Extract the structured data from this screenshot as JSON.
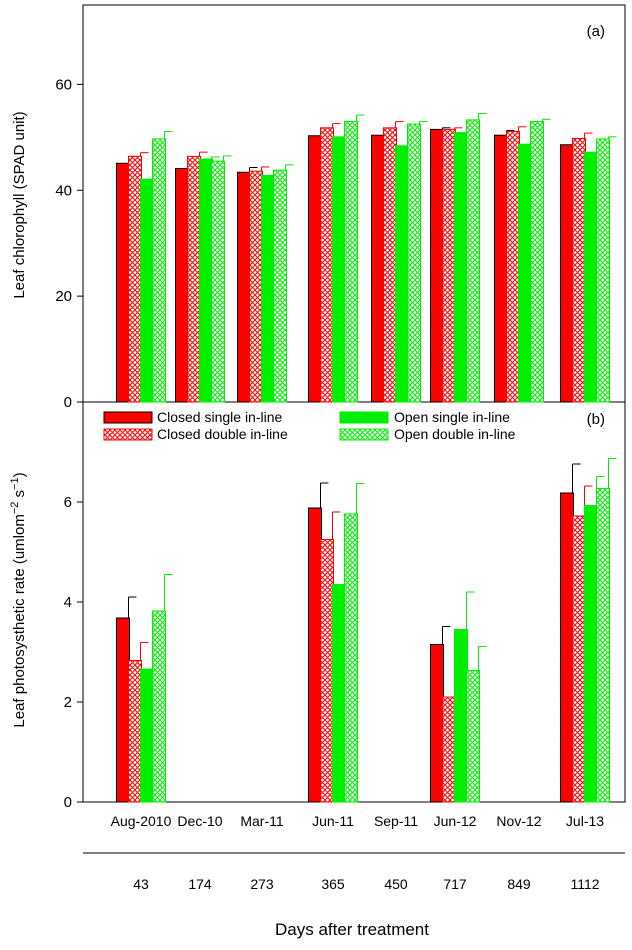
{
  "chart_data": [
    {
      "type": "bar",
      "panel_label": "(a)",
      "ylabel": "Leaf chlorophyll (SPAD unit)",
      "ylim": [
        0,
        75
      ],
      "yticks": [
        0,
        20,
        40,
        60
      ],
      "categories": [
        "Aug-2010",
        "Dec-10",
        "Mar-11",
        "Jun-11",
        "Sep-11",
        "Jun-12",
        "Nov-12",
        "Jul-13"
      ],
      "series": [
        {
          "name": "Closed single in-line",
          "values": [
            45.1,
            44.1,
            43.4,
            50.3,
            50.4,
            51.5,
            50.4,
            48.6
          ],
          "errors": [
            1.3,
            0.4,
            0.9,
            0.5,
            1.2,
            0.3,
            0.9,
            0.8
          ]
        },
        {
          "name": "Closed double in-line",
          "values": [
            46.4,
            46.4,
            43.6,
            51.8,
            51.8,
            51.5,
            51.1,
            49.8
          ],
          "errors": [
            0.7,
            0.8,
            0.8,
            0.8,
            1.2,
            0.3,
            0.9,
            1.0
          ]
        },
        {
          "name": "Open single in-line",
          "values": [
            42.1,
            45.9,
            42.8,
            50.1,
            48.4,
            50.9,
            48.7,
            47.2
          ],
          "errors": [
            0.6,
            0.4,
            0.6,
            1.6,
            0.8,
            0.8,
            0.8,
            0.5
          ]
        },
        {
          "name": "Open double in-line",
          "values": [
            49.7,
            45.5,
            43.8,
            53.0,
            52.5,
            53.3,
            53.0,
            49.7
          ],
          "errors": [
            1.4,
            1.0,
            1.0,
            1.2,
            0.5,
            1.2,
            0.4,
            0.4
          ]
        }
      ]
    },
    {
      "type": "bar",
      "panel_label": "(b)",
      "ylabel": "Leaf photosysthetic rate (umlom",
      "ylabel_sup": "−2",
      "ylabel_tail": " s",
      "ylabel_sup2": "−1",
      "ylabel_end": ")",
      "ylim": [
        0,
        8
      ],
      "yticks": [
        0,
        2,
        4,
        6
      ],
      "categories": [
        "Aug-2010",
        "Dec-10",
        "Mar-11",
        "Jun-11",
        "Sep-11",
        "Jun-12",
        "Nov-12",
        "Jul-13"
      ],
      "series": [
        {
          "name": "Closed single in-line",
          "values": [
            3.68,
            null,
            null,
            5.88,
            null,
            3.15,
            null,
            6.18
          ],
          "errors": [
            0.42,
            null,
            null,
            0.5,
            null,
            0.36,
            null,
            0.58
          ]
        },
        {
          "name": "Closed double in-line",
          "values": [
            2.83,
            null,
            null,
            5.25,
            null,
            2.1,
            null,
            5.72
          ],
          "errors": [
            0.36,
            null,
            null,
            0.55,
            null,
            0.42,
            null,
            0.6
          ]
        },
        {
          "name": "Open single in-line",
          "values": [
            2.66,
            null,
            null,
            4.35,
            null,
            3.45,
            null,
            5.93
          ],
          "errors": [
            0.46,
            null,
            null,
            0.56,
            null,
            0.75,
            null,
            0.58
          ]
        },
        {
          "name": "Open double in-line",
          "values": [
            3.82,
            null,
            null,
            5.76,
            null,
            2.63,
            null,
            6.27
          ],
          "errors": [
            0.73,
            null,
            null,
            0.61,
            null,
            0.48,
            null,
            0.6
          ]
        }
      ]
    }
  ],
  "legend": {
    "items": [
      {
        "label": "Closed single in-line",
        "color": "#ff0000",
        "pattern": "solid"
      },
      {
        "label": "Closed double in-line",
        "color": "#ff0000",
        "pattern": "crosshatch"
      },
      {
        "label": "Open single in-line",
        "color": "#00ee00",
        "pattern": "solid"
      },
      {
        "label": "Open double in-line",
        "color": "#00ee00",
        "pattern": "crosshatch"
      }
    ]
  },
  "secondary_axis": {
    "values": [
      "43",
      "174",
      "273",
      "365",
      "450",
      "717",
      "849",
      "1112"
    ],
    "label": "Days after treatment"
  },
  "colors": {
    "closed": "#ff0000",
    "open": "#00ee00",
    "closed_error": "#000000",
    "closed_double_error": "#ff0000",
    "open_error": "#00ee00"
  }
}
